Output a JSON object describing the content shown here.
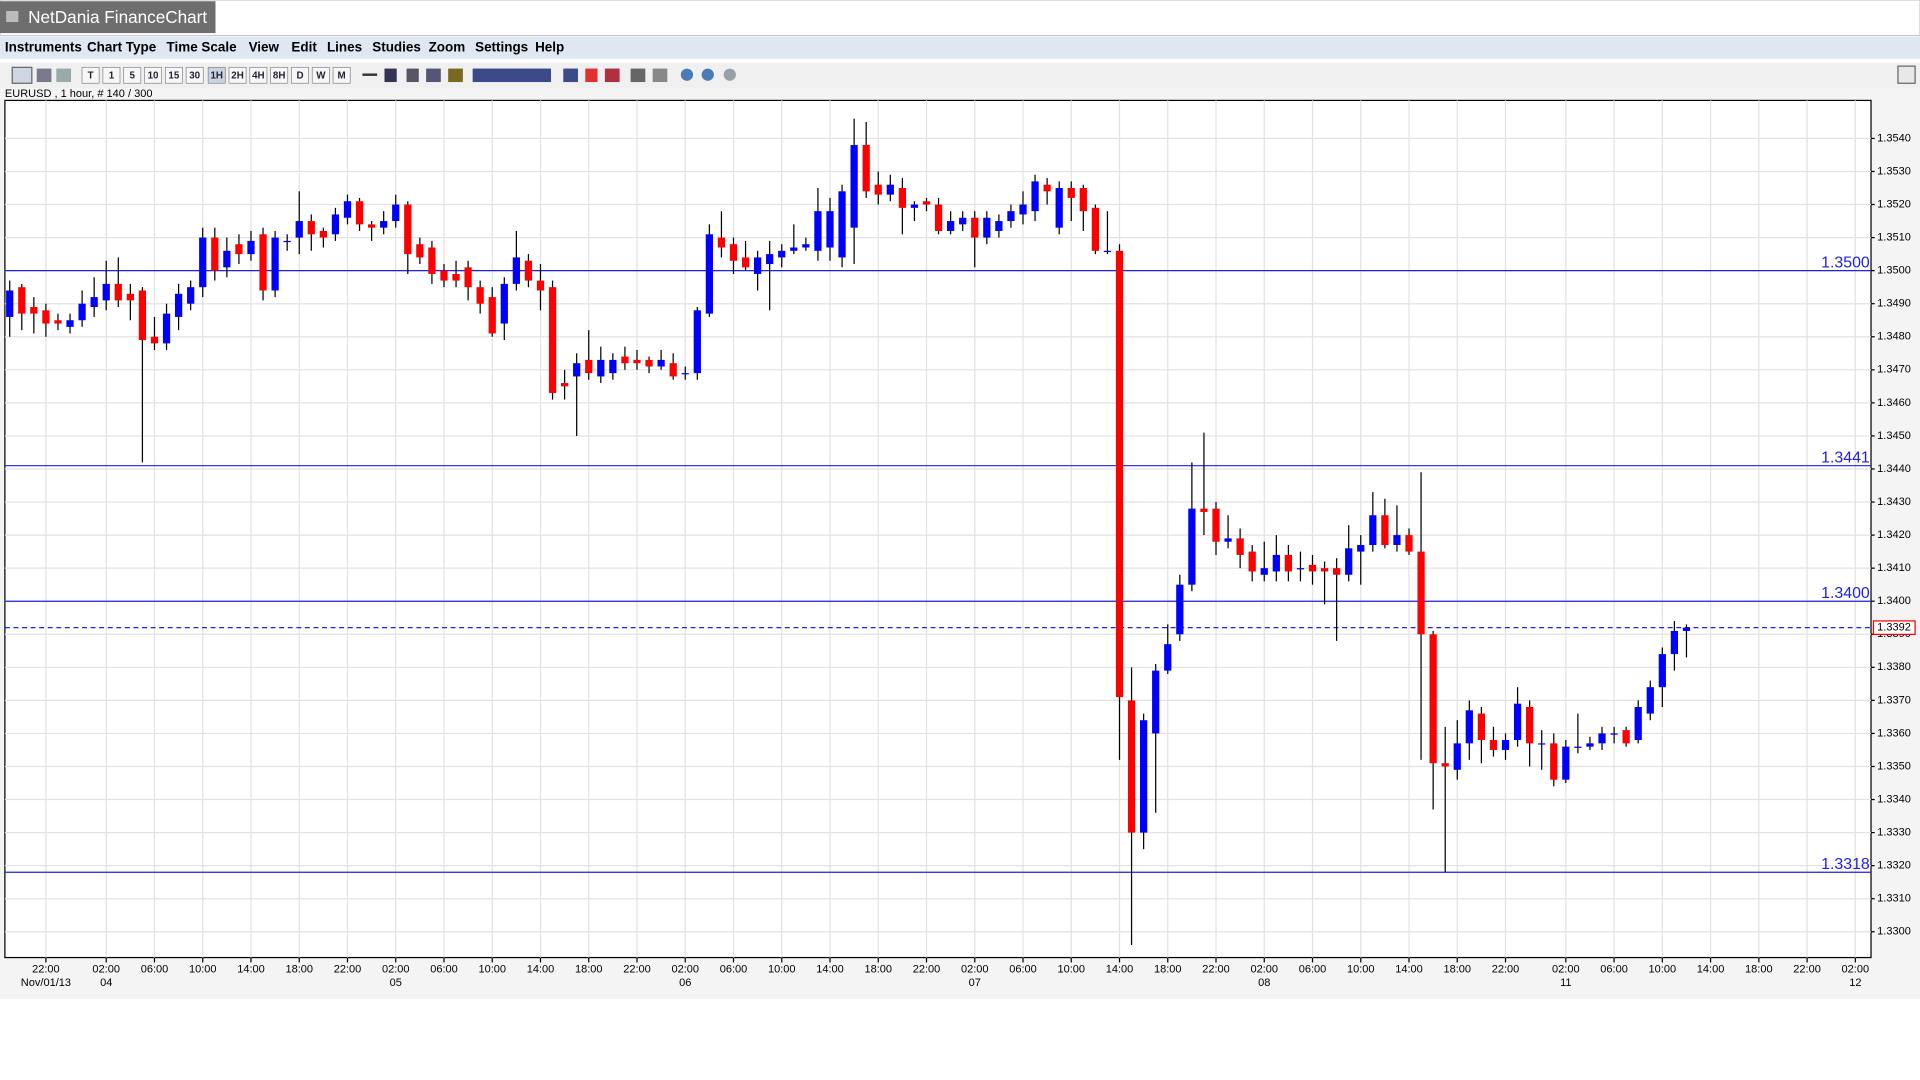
{
  "window": {
    "title": "NetDania FinanceChart"
  },
  "menu": [
    "Instruments",
    "Chart Type",
    "Time Scale",
    "View",
    "Edit",
    "Lines",
    "Studies",
    "Zoom",
    "Settings",
    "Help"
  ],
  "toolbar": {
    "buttons": [
      "T",
      "1",
      "5",
      "10",
      "15",
      "30",
      "1H",
      "2H",
      "4H",
      "8H",
      "D",
      "W",
      "M"
    ]
  },
  "chart_data": {
    "type": "candlestick",
    "instrument_info": "EURUSD , 1 hour, # 140 / 300",
    "up_color": "#0000ff",
    "down_color": "#ff0000",
    "grid": true,
    "xlim": [
      -0.4,
      154.3
    ],
    "ylim": [
      1.32922,
      1.35515
    ],
    "open": [
      1.3486,
      1.3495,
      1.3489,
      1.3488,
      1.3485,
      1.3483,
      1.3485,
      1.3489,
      1.3491,
      1.3496,
      1.3493,
      1.3494,
      1.348,
      1.3478,
      1.3486,
      1.349,
      1.3495,
      1.351,
      1.3501,
      1.3508,
      1.3505,
      1.3511,
      1.3494,
      1.3509,
      1.351,
      1.3515,
      1.3512,
      1.3511,
      1.3516,
      1.3521,
      1.3514,
      1.3513,
      1.3515,
      1.352,
      1.3508,
      1.3507,
      1.35,
      1.3499,
      1.3501,
      1.3495,
      1.3492,
      1.3484,
      1.3496,
      1.3503,
      1.3497,
      1.3495,
      1.3466,
      1.3468,
      1.3473,
      1.3468,
      1.3469,
      1.3474,
      1.3473,
      1.3473,
      1.3471,
      1.3472,
      1.3469,
      1.3469,
      1.3487,
      1.351,
      1.3508,
      1.3504,
      1.3499,
      1.3502,
      1.3504,
      1.3506,
      1.3507,
      1.3506,
      1.3507,
      1.3504,
      1.3513,
      1.3538,
      1.3526,
      1.3523,
      1.3525,
      1.3519,
      1.3521,
      1.352,
      1.3512,
      1.3514,
      1.3516,
      1.351,
      1.3512,
      1.3515,
      1.3517,
      1.3518,
      1.3526,
      1.3513,
      1.3525,
      1.3525,
      1.3519,
      1.3506,
      1.3506,
      1.337,
      1.333,
      1.336,
      1.3379,
      1.339,
      1.3405,
      1.3428,
      1.3428,
      1.3418,
      1.3419,
      1.3415,
      1.3408,
      1.3409,
      1.3414,
      1.341,
      1.3411,
      1.341,
      1.341,
      1.3408,
      1.3415,
      1.3417,
      1.3426,
      1.3417,
      1.342,
      1.3415,
      1.339,
      1.3351,
      1.3349,
      1.3357,
      1.3366,
      1.3358,
      1.3355,
      1.3358,
      1.3368,
      1.3357,
      1.3357,
      1.3346,
      1.3356,
      1.3356,
      1.3357,
      1.336,
      1.3361,
      1.3358,
      1.3366,
      1.3374,
      1.3384,
      1.3391
    ],
    "high": [
      1.3497,
      1.3496,
      1.3492,
      1.349,
      1.3487,
      1.3487,
      1.3494,
      1.3498,
      1.3503,
      1.3504,
      1.3496,
      1.3495,
      1.3486,
      1.349,
      1.3496,
      1.3497,
      1.3513,
      1.3513,
      1.351,
      1.3511,
      1.3512,
      1.3513,
      1.3512,
      1.3511,
      1.3524,
      1.3517,
      1.3513,
      1.3519,
      1.3523,
      1.3522,
      1.3515,
      1.3518,
      1.3523,
      1.3521,
      1.351,
      1.3509,
      1.3502,
      1.3503,
      1.3503,
      1.3497,
      1.3495,
      1.3498,
      1.3512,
      1.3505,
      1.3502,
      1.3497,
      1.347,
      1.3475,
      1.3482,
      1.3477,
      1.3475,
      1.3477,
      1.3476,
      1.3474,
      1.3476,
      1.3475,
      1.3471,
      1.3489,
      1.3514,
      1.3518,
      1.351,
      1.3509,
      1.3506,
      1.3509,
      1.3508,
      1.3514,
      1.351,
      1.3525,
      1.3522,
      1.3526,
      1.3546,
      1.3545,
      1.353,
      1.3529,
      1.3528,
      1.3521,
      1.3522,
      1.3522,
      1.3518,
      1.3518,
      1.3518,
      1.3518,
      1.3517,
      1.352,
      1.3524,
      1.3529,
      1.3528,
      1.3527,
      1.3527,
      1.3526,
      1.352,
      1.3518,
      1.3508,
      1.338,
      1.3366,
      1.3381,
      1.3393,
      1.3408,
      1.3442,
      1.3451,
      1.343,
      1.3426,
      1.3422,
      1.3417,
      1.3418,
      1.342,
      1.3417,
      1.3415,
      1.3414,
      1.3412,
      1.3413,
      1.3423,
      1.342,
      1.3433,
      1.3431,
      1.3429,
      1.3422,
      1.3439,
      1.3391,
      1.3362,
      1.3364,
      1.337,
      1.3368,
      1.3362,
      1.336,
      1.3374,
      1.337,
      1.3361,
      1.336,
      1.3358,
      1.3366,
      1.3359,
      1.3362,
      1.3362,
      1.3362,
      1.337,
      1.3376,
      1.3386,
      1.3394,
      1.3393
    ],
    "low": [
      1.348,
      1.3482,
      1.3481,
      1.348,
      1.3482,
      1.3481,
      1.3483,
      1.3486,
      1.3488,
      1.3489,
      1.3485,
      1.3442,
      1.3476,
      1.3476,
      1.3482,
      1.3488,
      1.3492,
      1.3497,
      1.3498,
      1.3502,
      1.3503,
      1.3491,
      1.3492,
      1.3506,
      1.3505,
      1.3506,
      1.3507,
      1.3509,
      1.3514,
      1.3512,
      1.3509,
      1.3511,
      1.3513,
      1.3499,
      1.3502,
      1.3496,
      1.3495,
      1.3495,
      1.3491,
      1.3487,
      1.348,
      1.3479,
      1.3494,
      1.3495,
      1.3488,
      1.3461,
      1.3461,
      1.345,
      1.3467,
      1.3466,
      1.3467,
      1.347,
      1.347,
      1.3469,
      1.347,
      1.3467,
      1.3467,
      1.3467,
      1.3486,
      1.3504,
      1.3499,
      1.35,
      1.3494,
      1.3488,
      1.3501,
      1.3505,
      1.3506,
      1.3503,
      1.3503,
      1.3501,
      1.3502,
      1.3522,
      1.352,
      1.3521,
      1.3511,
      1.3515,
      1.3518,
      1.3511,
      1.3511,
      1.3512,
      1.3501,
      1.3508,
      1.351,
      1.3513,
      1.3514,
      1.3515,
      1.352,
      1.3511,
      1.3515,
      1.3512,
      1.3505,
      1.3505,
      1.3352,
      1.3296,
      1.3325,
      1.3336,
      1.3378,
      1.3388,
      1.3403,
      1.342,
      1.3414,
      1.3416,
      1.341,
      1.3406,
      1.3406,
      1.3406,
      1.3406,
      1.3406,
      1.3405,
      1.3399,
      1.3388,
      1.3406,
      1.3405,
      1.3415,
      1.3416,
      1.3415,
      1.3414,
      1.3352,
      1.3337,
      1.3318,
      1.3346,
      1.3352,
      1.3351,
      1.3353,
      1.3352,
      1.3356,
      1.335,
      1.3349,
      1.3344,
      1.3345,
      1.3354,
      1.3355,
      1.3355,
      1.3357,
      1.3356,
      1.3357,
      1.3364,
      1.3368,
      1.3379,
      1.3383
    ],
    "close": [
      1.3494,
      1.3487,
      1.3487,
      1.3484,
      1.3484,
      1.3485,
      1.349,
      1.3492,
      1.3496,
      1.3491,
      1.3491,
      1.3479,
      1.3478,
      1.3487,
      1.3493,
      1.3495,
      1.351,
      1.35,
      1.3506,
      1.3505,
      1.3509,
      1.3494,
      1.351,
      1.3509,
      1.3515,
      1.3511,
      1.351,
      1.3517,
      1.3521,
      1.3514,
      1.3513,
      1.3515,
      1.352,
      1.3505,
      1.3504,
      1.3499,
      1.3497,
      1.3497,
      1.3495,
      1.349,
      1.3481,
      1.3496,
      1.3504,
      1.3497,
      1.3494,
      1.3463,
      1.3465,
      1.3472,
      1.3469,
      1.3473,
      1.3473,
      1.3472,
      1.3472,
      1.3471,
      1.3473,
      1.3468,
      1.3469,
      1.3488,
      1.3511,
      1.3507,
      1.3503,
      1.3501,
      1.3504,
      1.3505,
      1.3506,
      1.3507,
      1.3508,
      1.3518,
      1.3518,
      1.3524,
      1.3538,
      1.3524,
      1.3523,
      1.3526,
      1.3519,
      1.352,
      1.352,
      1.3512,
      1.3515,
      1.3516,
      1.351,
      1.3516,
      1.3515,
      1.3518,
      1.352,
      1.3527,
      1.3524,
      1.3525,
      1.3522,
      1.3518,
      1.3506,
      1.3506,
      1.3371,
      1.333,
      1.3364,
      1.3379,
      1.3387,
      1.3405,
      1.3428,
      1.3427,
      1.3418,
      1.3419,
      1.3414,
      1.3409,
      1.341,
      1.3414,
      1.3409,
      1.341,
      1.3409,
      1.3409,
      1.3408,
      1.3416,
      1.3417,
      1.3426,
      1.3417,
      1.342,
      1.3415,
      1.339,
      1.3351,
      1.335,
      1.3357,
      1.3367,
      1.3358,
      1.3355,
      1.3358,
      1.3369,
      1.3357,
      1.3357,
      1.3346,
      1.3356,
      1.3356,
      1.3357,
      1.336,
      1.336,
      1.3357,
      1.3368,
      1.3374,
      1.3384,
      1.3391,
      1.3392
    ],
    "yticks": [
      {
        "value": 1.33,
        "label": "1.3300"
      },
      {
        "value": 1.331,
        "label": "1.3310"
      },
      {
        "value": 1.332,
        "label": "1.3320"
      },
      {
        "value": 1.333,
        "label": "1.3330"
      },
      {
        "value": 1.334,
        "label": "1.3340"
      },
      {
        "value": 1.335,
        "label": "1.3350"
      },
      {
        "value": 1.336,
        "label": "1.3360"
      },
      {
        "value": 1.337,
        "label": "1.3370"
      },
      {
        "value": 1.338,
        "label": "1.3380"
      },
      {
        "value": 1.339,
        "label": "1.3390"
      },
      {
        "value": 1.34,
        "label": "1.3400"
      },
      {
        "value": 1.341,
        "label": "1.3410"
      },
      {
        "value": 1.342,
        "label": "1.3420"
      },
      {
        "value": 1.343,
        "label": "1.3430"
      },
      {
        "value": 1.344,
        "label": "1.3440"
      },
      {
        "value": 1.345,
        "label": "1.3450"
      },
      {
        "value": 1.346,
        "label": "1.3460"
      },
      {
        "value": 1.347,
        "label": "1.3470"
      },
      {
        "value": 1.348,
        "label": "1.3480"
      },
      {
        "value": 1.349,
        "label": "1.3490"
      },
      {
        "value": 1.35,
        "label": "1.3500"
      },
      {
        "value": 1.351,
        "label": "1.3510"
      },
      {
        "value": 1.352,
        "label": "1.3520"
      },
      {
        "value": 1.353,
        "label": "1.3530"
      },
      {
        "value": 1.354,
        "label": "1.3540"
      }
    ],
    "xticks": [
      {
        "value": 3,
        "label": "22:00"
      },
      {
        "value": 8,
        "label": "02:00"
      },
      {
        "value": 12,
        "label": "06:00"
      },
      {
        "value": 16,
        "label": "10:00"
      },
      {
        "value": 20,
        "label": "14:00"
      },
      {
        "value": 24,
        "label": "18:00"
      },
      {
        "value": 28,
        "label": "22:00"
      },
      {
        "value": 32,
        "label": "02:00"
      },
      {
        "value": 36,
        "label": "06:00"
      },
      {
        "value": 40,
        "label": "10:00"
      },
      {
        "value": 44,
        "label": "14:00"
      },
      {
        "value": 48,
        "label": "18:00"
      },
      {
        "value": 52,
        "label": "22:00"
      },
      {
        "value": 56,
        "label": "02:00"
      },
      {
        "value": 60,
        "label": "06:00"
      },
      {
        "value": 64,
        "label": "10:00"
      },
      {
        "value": 68,
        "label": "14:00"
      },
      {
        "value": 72,
        "label": "18:00"
      },
      {
        "value": 76,
        "label": "22:00"
      },
      {
        "value": 80,
        "label": "02:00"
      },
      {
        "value": 84,
        "label": "06:00"
      },
      {
        "value": 88,
        "label": "10:00"
      },
      {
        "value": 92,
        "label": "14:00"
      },
      {
        "value": 96,
        "label": "18:00"
      },
      {
        "value": 100,
        "label": "22:00"
      },
      {
        "value": 104,
        "label": "02:00"
      },
      {
        "value": 108,
        "label": "06:00"
      },
      {
        "value": 112,
        "label": "10:00"
      },
      {
        "value": 116,
        "label": "14:00"
      },
      {
        "value": 120,
        "label": "18:00"
      },
      {
        "value": 124,
        "label": "22:00"
      },
      {
        "value": 129,
        "label": "02:00"
      },
      {
        "value": 133,
        "label": "06:00"
      },
      {
        "value": 137,
        "label": "10:00"
      },
      {
        "value": 141,
        "label": "14:00"
      },
      {
        "value": 145,
        "label": "18:00"
      },
      {
        "value": 149,
        "label": "22:00"
      },
      {
        "value": 153,
        "label": "02:00"
      }
    ],
    "date_labels": [
      {
        "value": 3,
        "label": "Nov/01/13"
      },
      {
        "value": 8,
        "label": "04"
      },
      {
        "value": 32,
        "label": "05"
      },
      {
        "value": 56,
        "label": "06"
      },
      {
        "value": 80,
        "label": "07"
      },
      {
        "value": 104,
        "label": "08"
      },
      {
        "value": 129,
        "label": "11"
      },
      {
        "value": 153,
        "label": "12"
      }
    ],
    "levels": [
      {
        "value": 1.35,
        "label": "1.3500"
      },
      {
        "value": 1.3441,
        "label": "1.3441"
      },
      {
        "value": 1.34,
        "label": "1.3400"
      },
      {
        "value": 1.3318,
        "label": "1.3318"
      }
    ],
    "level_color": "#2020e0",
    "last_price": {
      "value": 1.3392,
      "label": "1.3392"
    }
  }
}
